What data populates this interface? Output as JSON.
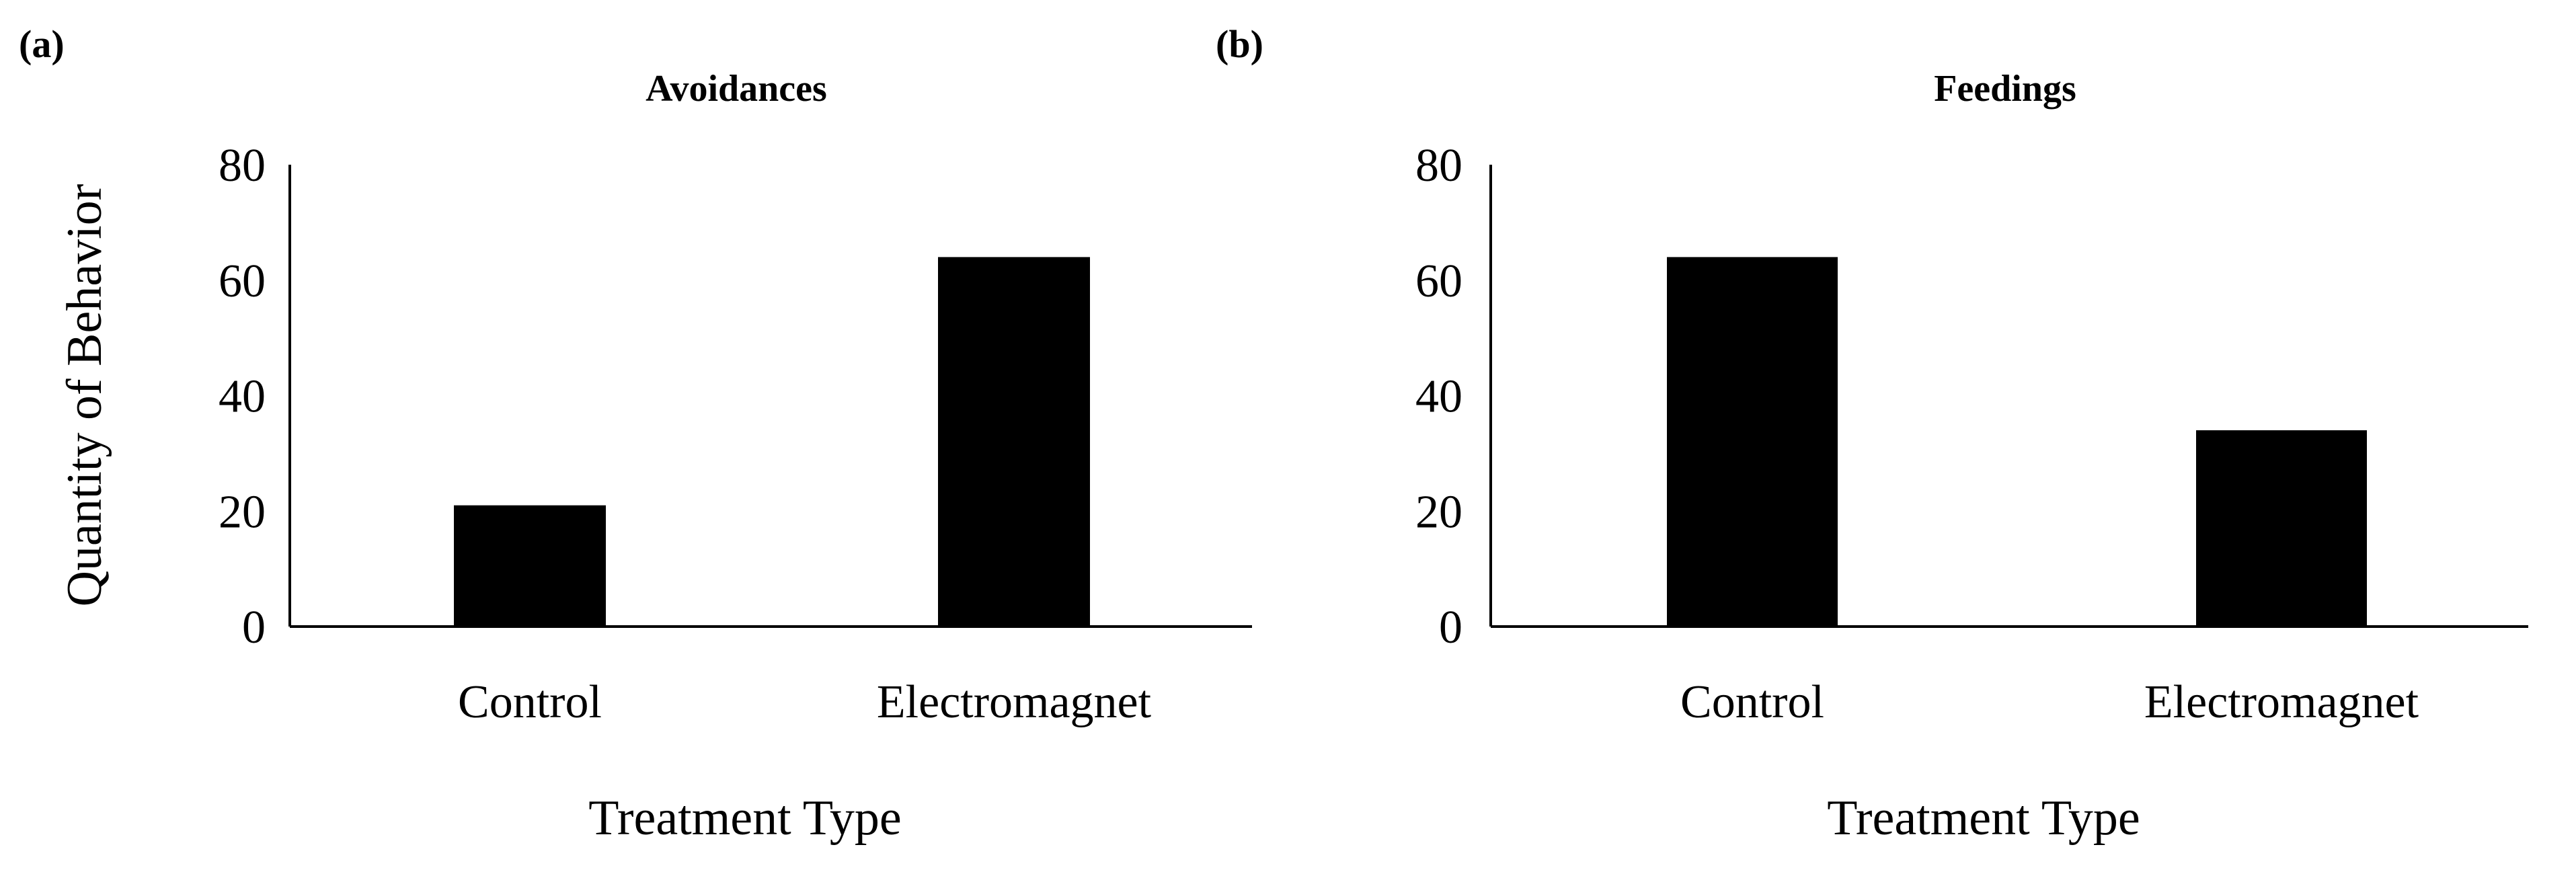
{
  "chart_data": [
    {
      "panel_label": "(a)",
      "type": "bar",
      "title": "Avoidances",
      "categories": [
        "Control",
        "Electromagnet"
      ],
      "values": [
        21,
        64
      ],
      "xlabel": "Treatment Type",
      "ylabel": "Quantity of Behavior",
      "ylim": [
        0,
        80
      ],
      "yticks": [
        "0",
        "20",
        "40",
        "60",
        "80"
      ],
      "bar_color": "#000000",
      "grid": false,
      "legend": "none"
    },
    {
      "panel_label": "(b)",
      "type": "bar",
      "title": "Feedings",
      "categories": [
        "Control",
        "Electromagnet"
      ],
      "values": [
        64,
        34
      ],
      "xlabel": "Treatment Type",
      "ylabel": "",
      "ylim": [
        0,
        80
      ],
      "yticks": [
        "0",
        "20",
        "40",
        "60",
        "80"
      ],
      "bar_color": "#000000",
      "grid": false,
      "legend": "none"
    }
  ]
}
